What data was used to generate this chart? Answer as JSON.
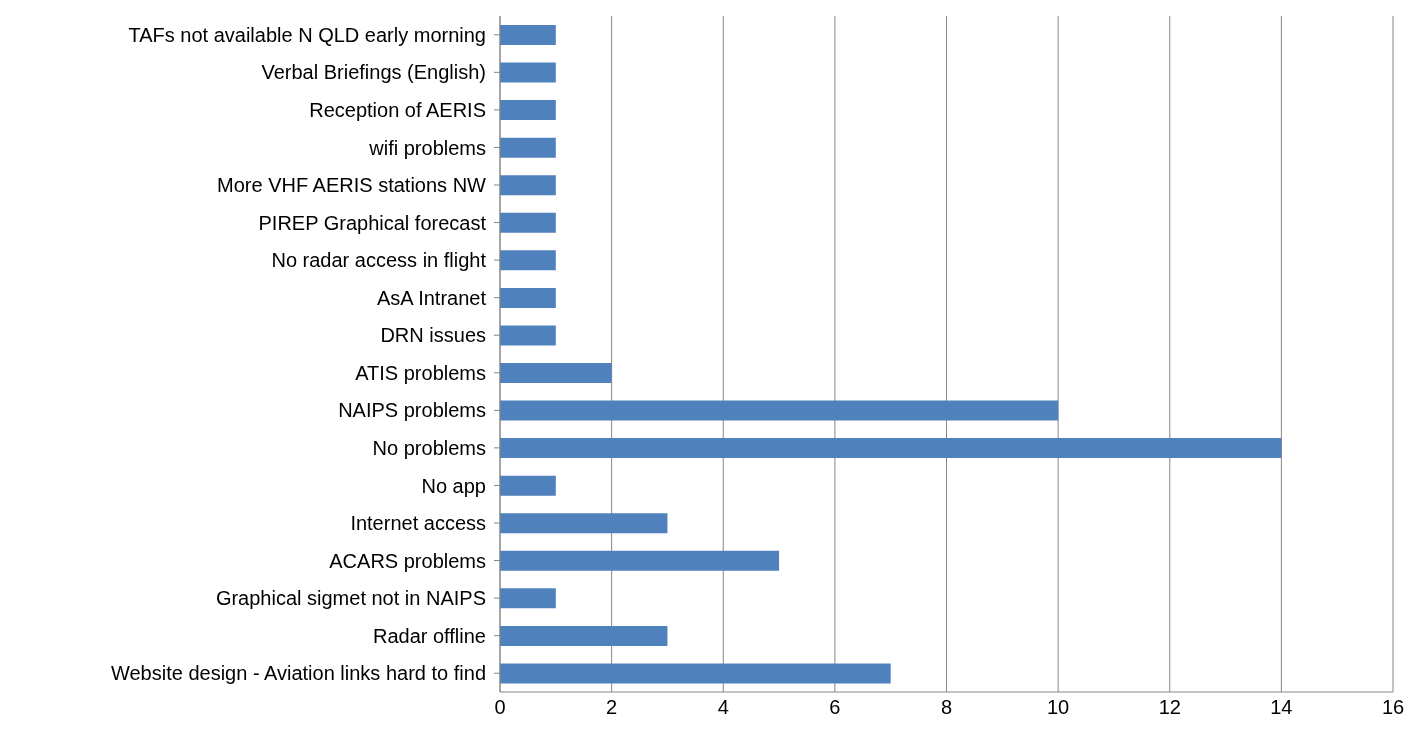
{
  "chart_data": {
    "type": "bar",
    "orientation": "horizontal",
    "categories": [
      "TAFs not available N QLD early morning",
      "Verbal Briefings (English)",
      "Reception of AERIS",
      "wifi problems",
      "More VHF AERIS stations NW",
      "PIREP Graphical forecast",
      "No radar access in flight",
      "AsA Intranet",
      "DRN issues",
      "ATIS problems",
      "NAIPS problems",
      "No problems",
      "No app",
      "Internet access",
      "ACARS problems",
      "Graphical sigmet not in NAIPS",
      "Radar offline",
      "Website design - Aviation links hard to find"
    ],
    "values": [
      1,
      1,
      1,
      1,
      1,
      1,
      1,
      1,
      1,
      2,
      10,
      14,
      1,
      3,
      5,
      1,
      3,
      7
    ],
    "color": "#4f81bd",
    "xlim": [
      0,
      16
    ],
    "xticks": [
      0,
      2,
      4,
      6,
      8,
      10,
      12,
      14,
      16
    ],
    "grid": "x"
  }
}
